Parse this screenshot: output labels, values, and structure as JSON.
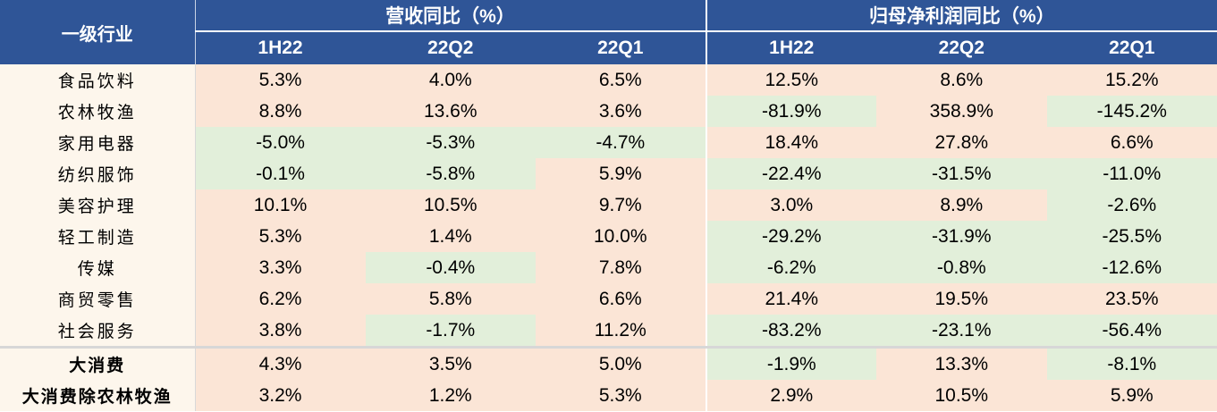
{
  "header": {
    "corner": "一级行业",
    "groups": [
      "营收同比（%）",
      "归母净利润同比（%）"
    ],
    "periods": [
      "1H22",
      "22Q2",
      "22Q1",
      "1H22",
      "22Q2",
      "22Q1"
    ]
  },
  "colors": {
    "header_bg": "#2f5597",
    "positive_bg": "#fbe5d6",
    "negative_bg": "#e2efda",
    "name_bg": "#fdf6ec"
  },
  "rows": [
    {
      "name": "食品饮料",
      "values": [
        "5.3%",
        "4.0%",
        "6.5%",
        "12.5%",
        "8.6%",
        "15.2%"
      ]
    },
    {
      "name": "农林牧渔",
      "values": [
        "8.8%",
        "13.6%",
        "3.6%",
        "-81.9%",
        "358.9%",
        "-145.2%"
      ]
    },
    {
      "name": "家用电器",
      "values": [
        "-5.0%",
        "-5.3%",
        "-4.7%",
        "18.4%",
        "27.8%",
        "6.6%"
      ]
    },
    {
      "name": "纺织服饰",
      "values": [
        "-0.1%",
        "-5.8%",
        "5.9%",
        "-22.4%",
        "-31.5%",
        "-11.0%"
      ]
    },
    {
      "name": "美容护理",
      "values": [
        "10.1%",
        "10.5%",
        "9.7%",
        "3.0%",
        "8.9%",
        "-2.6%"
      ]
    },
    {
      "name": "轻工制造",
      "values": [
        "5.3%",
        "1.4%",
        "10.0%",
        "-29.2%",
        "-31.9%",
        "-25.5%"
      ]
    },
    {
      "name": "传媒",
      "values": [
        "3.3%",
        "-0.4%",
        "7.8%",
        "-6.2%",
        "-0.8%",
        "-12.6%"
      ]
    },
    {
      "name": "商贸零售",
      "values": [
        "6.2%",
        "5.8%",
        "6.6%",
        "21.4%",
        "19.5%",
        "23.5%"
      ]
    },
    {
      "name": "社会服务",
      "values": [
        "3.8%",
        "-1.7%",
        "11.2%",
        "-83.2%",
        "-23.1%",
        "-56.4%"
      ]
    }
  ],
  "summary_rows": [
    {
      "name": "大消费",
      "values": [
        "4.3%",
        "3.5%",
        "5.0%",
        "-1.9%",
        "13.3%",
        "-8.1%"
      ]
    },
    {
      "name": "大消费除农林牧渔",
      "values": [
        "3.2%",
        "1.2%",
        "5.3%",
        "2.9%",
        "10.5%",
        "5.9%"
      ]
    }
  ]
}
